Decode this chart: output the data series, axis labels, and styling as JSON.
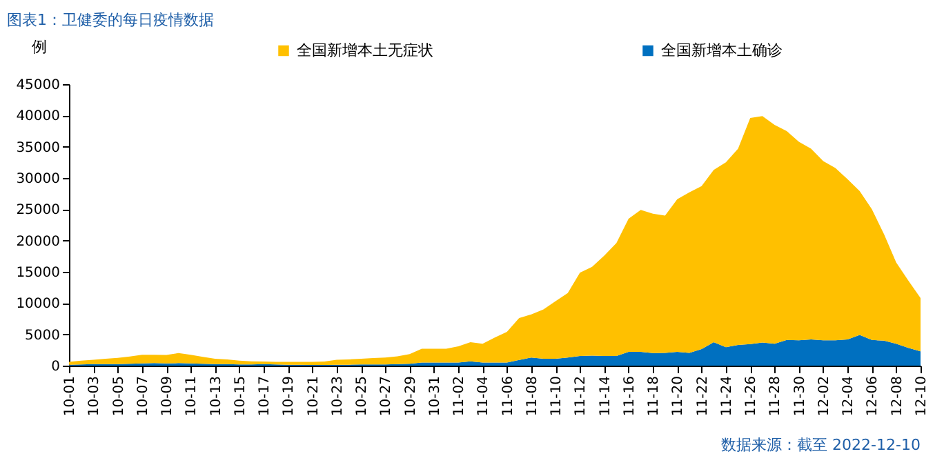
{
  "chart_data": {
    "type": "area",
    "title": "图表1：卫健委的每日疫情数据",
    "ylabel": "例",
    "stacked": true,
    "legend": "top",
    "grid": false,
    "categories": [
      "10-01",
      null,
      "10-03",
      null,
      "10-05",
      null,
      "10-07",
      null,
      "10-09",
      null,
      "10-11",
      null,
      "10-13",
      null,
      "10-15",
      null,
      "10-17",
      null,
      "10-19",
      null,
      "10-21",
      null,
      "10-23",
      null,
      "10-25",
      null,
      "10-27",
      null,
      "10-29",
      null,
      "10-31",
      null,
      "11-02",
      null,
      "11-04",
      null,
      "11-06",
      null,
      "11-08",
      null,
      "11-10",
      null,
      "11-12",
      null,
      "11-14",
      null,
      "11-16",
      null,
      "11-18",
      null,
      "11-20",
      null,
      "11-22",
      null,
      "11-24",
      null,
      "11-26",
      null,
      "11-28",
      null,
      "11-30",
      null,
      "12-02",
      null,
      "12-04",
      null,
      "12-06",
      null,
      "12-08",
      null,
      "12-10"
    ],
    "series": [
      {
        "name": "全国新增本土确诊",
        "color": "#0070c0",
        "values": [
          150,
          200,
          250,
          250,
          250,
          300,
          350,
          400,
          350,
          400,
          350,
          300,
          250,
          250,
          200,
          200,
          250,
          200,
          150,
          150,
          100,
          100,
          150,
          150,
          200,
          200,
          200,
          250,
          300,
          500,
          500,
          500,
          500,
          700,
          500,
          500,
          500,
          900,
          1300,
          1100,
          1100,
          1300,
          1550,
          1600,
          1550,
          1550,
          2200,
          2200,
          2000,
          2050,
          2200,
          2050,
          2650,
          3750,
          2950,
          3300,
          3450,
          3700,
          3500,
          4100,
          4050,
          4200,
          4050,
          4050,
          4200,
          4900,
          4100,
          4000,
          3500,
          2850,
          2300
        ]
      },
      {
        "name": "全国新增本土无症状",
        "color": "#ffc000",
        "values": [
          450,
          600,
          700,
          850,
          1000,
          1150,
          1400,
          1350,
          1350,
          1600,
          1400,
          1100,
          850,
          750,
          600,
          500,
          400,
          400,
          450,
          450,
          500,
          550,
          800,
          850,
          900,
          1000,
          1100,
          1250,
          1550,
          2200,
          2200,
          2200,
          2600,
          3050,
          3000,
          4000,
          4900,
          6700,
          6900,
          7900,
          9200,
          10300,
          13300,
          14200,
          16050,
          18050,
          21300,
          22700,
          22300,
          21950,
          24400,
          25650,
          26050,
          27550,
          29550,
          31400,
          36150,
          36200,
          35000,
          33400,
          31750,
          30500,
          28650,
          27550,
          25600,
          23000,
          20900,
          17000,
          13000,
          10750,
          8500
        ]
      }
    ],
    "ylim": [
      0,
      45000
    ],
    "yticks": [
      0,
      5000,
      10000,
      15000,
      20000,
      25000,
      30000,
      35000,
      40000,
      45000
    ],
    "annotations": [
      "数据来源：截至 2022-12-10"
    ]
  }
}
